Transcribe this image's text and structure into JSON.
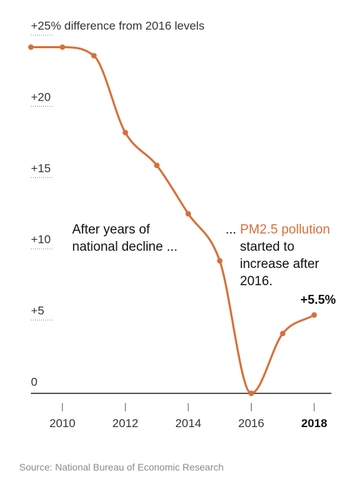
{
  "chart_data": {
    "type": "line",
    "x": [
      2009,
      2010,
      2011,
      2012,
      2013,
      2014,
      2015,
      2016,
      2017,
      2018
    ],
    "series": [
      {
        "values": [
          24.3,
          24.3,
          23.7,
          18.3,
          16.0,
          12.6,
          9.3,
          0.0,
          4.2,
          5.5
        ],
        "color": "#d6703a"
      }
    ],
    "ylim": [
      0,
      25
    ],
    "xlim": [
      2009,
      2018
    ],
    "y_ticks": [
      0,
      5,
      10,
      15,
      20,
      25
    ],
    "y_tick_labels": [
      "0",
      "+5",
      "+10",
      "+15",
      "+20",
      "+25% difference from 2016 levels"
    ],
    "x_ticks": [
      2010,
      2012,
      2014,
      2016,
      2018
    ],
    "x_tick_labels": [
      "2010",
      "2012",
      "2014",
      "2016",
      "2018"
    ],
    "x_bold_tick": "2018",
    "annotations": {
      "left": [
        "After years of",
        "national decline ..."
      ],
      "right_prefix": "...",
      "right_highlight": "PM2.5 pollution",
      "right_lines": [
        "started to",
        "increase after",
        "2016."
      ],
      "end_label": "+5.5%"
    },
    "grid": false,
    "accent_color": "#d6703a"
  },
  "source": "Source: National Bureau of Economic Research"
}
